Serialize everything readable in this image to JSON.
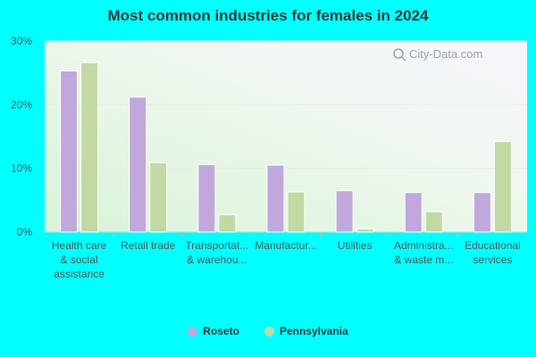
{
  "chart_data": {
    "type": "bar",
    "title": "Most common industries for females in 2024",
    "categories": [
      [
        "Health care",
        "& social",
        "assistance"
      ],
      [
        "Retail trade"
      ],
      [
        "Transportat...",
        "& warehou..."
      ],
      [
        "Manufactur..."
      ],
      [
        "Utilities"
      ],
      [
        "Administra...",
        "& waste m..."
      ],
      [
        "Educational",
        "services"
      ]
    ],
    "series": [
      {
        "name": "Roseto",
        "color": "#c0a8dc",
        "values": [
          25.3,
          21.2,
          10.6,
          10.5,
          6.5,
          6.2,
          6.2
        ]
      },
      {
        "name": "Pennsylvania",
        "color": "#c2d9a3",
        "values": [
          26.6,
          10.9,
          2.7,
          6.3,
          0.5,
          3.2,
          14.2
        ]
      }
    ],
    "yticks": [
      "0%",
      "10%",
      "20%",
      "30%"
    ],
    "ylim": [
      0,
      30
    ],
    "legend_position": "bottom-center",
    "watermark": "City-Data.com"
  }
}
